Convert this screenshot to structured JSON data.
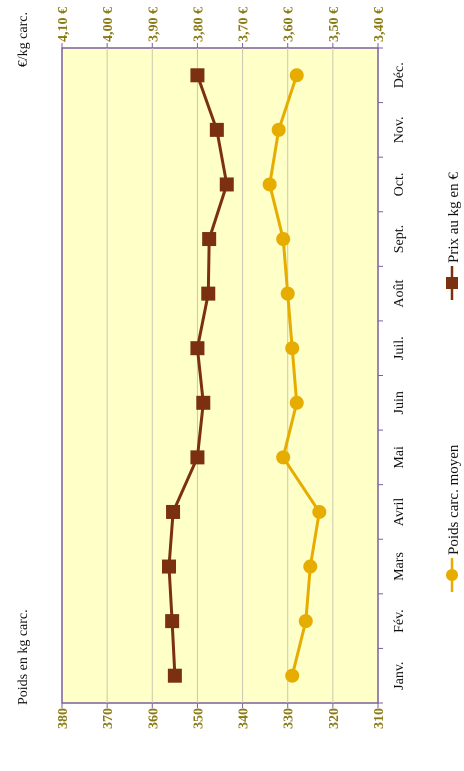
{
  "chart_data": {
    "type": "line",
    "orientation": "rotated-90",
    "categories": [
      "Janv.",
      "Fév.",
      "Mars",
      "Avril",
      "Mai",
      "Juin",
      "Juil.",
      "Août",
      "Sept.",
      "Oct.",
      "Nov.",
      "Déc."
    ],
    "left_axis": {
      "title": "Poids en kg carc.",
      "ticks": [
        "380",
        "370",
        "360",
        "350",
        "340",
        "330",
        "320",
        "310"
      ],
      "range": [
        310,
        380
      ]
    },
    "right_axis": {
      "title": "€/kg carc.",
      "ticks": [
        "4,10 €",
        "4,00 €",
        "3,90 €",
        "3,80 €",
        "3,70 €",
        "3,60 €",
        "3,50 €",
        "3,40 €"
      ],
      "range": [
        3.4,
        4.1
      ]
    },
    "series": [
      {
        "name": "Poids carc. moyen",
        "axis": "left",
        "marker": "circle",
        "color": "#e6ac00",
        "values": [
          329,
          326,
          325,
          323,
          331,
          328,
          329,
          330,
          331,
          334,
          332,
          328
        ]
      },
      {
        "name": "Prix au kg en €",
        "axis": "right",
        "marker": "square",
        "color": "#7b3010",
        "values": [
          3.85,
          3.856,
          3.863,
          3.854,
          3.8,
          3.787,
          3.8,
          3.776,
          3.774,
          3.735,
          3.757,
          3.8
        ]
      }
    ],
    "grid": true,
    "plot_background": "#ffffc8",
    "legend_position": "right"
  }
}
